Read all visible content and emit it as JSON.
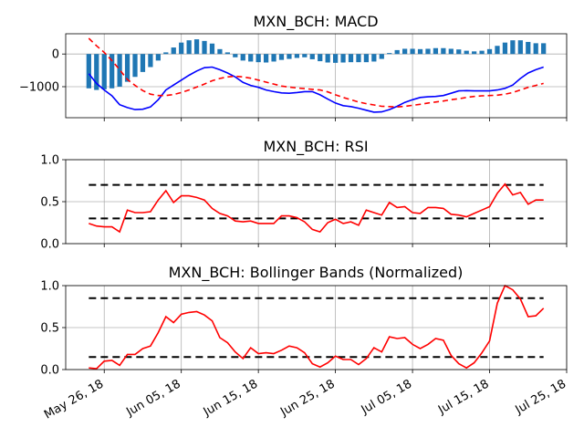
{
  "colors": {
    "bars": "#1f77b4",
    "macd": "#0000ff",
    "signal": "#ff0000",
    "rsi": "#ff0000",
    "bb": "#ff0000",
    "threshold": "#000000",
    "grid": "#b0b0b0"
  },
  "x_axis": {
    "tick_labels": [
      "May 26, 18",
      "Jun 05, 18",
      "Jun 15, 18",
      "Jun 25, 18",
      "Jul 05, 18",
      "Jul 15, 18",
      "Jul 25, 18"
    ],
    "tick_dates": [
      "2018-05-26",
      "2018-06-05",
      "2018-06-15",
      "2018-06-25",
      "2018-07-05",
      "2018-07-15",
      "2018-07-25"
    ],
    "range": [
      "2018-05-21",
      "2018-07-25"
    ]
  },
  "chart_data": [
    {
      "type": "line",
      "title": "MXN_BCH: MACD",
      "xlabel": "",
      "ylabel": "",
      "ylim": [
        -1950,
        620
      ],
      "yticks": [
        0,
        -1000
      ],
      "ytick_labels": [
        "0",
        "−1000"
      ],
      "grid": true,
      "x": [
        "2018-05-24",
        "2018-05-25",
        "2018-05-26",
        "2018-05-27",
        "2018-05-28",
        "2018-05-29",
        "2018-05-30",
        "2018-05-31",
        "2018-06-01",
        "2018-06-02",
        "2018-06-03",
        "2018-06-04",
        "2018-06-05",
        "2018-06-06",
        "2018-06-07",
        "2018-06-08",
        "2018-06-09",
        "2018-06-10",
        "2018-06-11",
        "2018-06-12",
        "2018-06-13",
        "2018-06-14",
        "2018-06-15",
        "2018-06-16",
        "2018-06-17",
        "2018-06-18",
        "2018-06-19",
        "2018-06-20",
        "2018-06-21",
        "2018-06-22",
        "2018-06-23",
        "2018-06-24",
        "2018-06-25",
        "2018-06-26",
        "2018-06-27",
        "2018-06-28",
        "2018-06-29",
        "2018-06-30",
        "2018-07-01",
        "2018-07-02",
        "2018-07-03",
        "2018-07-04",
        "2018-07-05",
        "2018-07-06",
        "2018-07-07",
        "2018-07-08",
        "2018-07-09",
        "2018-07-10",
        "2018-07-11",
        "2018-07-12",
        "2018-07-13",
        "2018-07-14",
        "2018-07-15",
        "2018-07-16",
        "2018-07-17",
        "2018-07-18",
        "2018-07-19",
        "2018-07-20",
        "2018-07-21",
        "2018-07-22"
      ],
      "series": [
        {
          "kind": "bar",
          "values": [
            -1050,
            -1100,
            -1080,
            -1050,
            -1000,
            -850,
            -700,
            -550,
            -400,
            -200,
            50,
            200,
            350,
            420,
            450,
            400,
            320,
            150,
            50,
            -100,
            -200,
            -230,
            -250,
            -260,
            -230,
            -180,
            -150,
            -120,
            -100,
            -160,
            -220,
            -260,
            -270,
            -260,
            -250,
            -250,
            -250,
            -230,
            -150,
            30,
            120,
            160,
            160,
            150,
            160,
            180,
            180,
            160,
            140,
            100,
            80,
            100,
            150,
            250,
            350,
            420,
            420,
            370,
            330,
            330
          ]
        },
        {
          "kind": "line",
          "values": [
            -600,
            -900,
            -1100,
            -1280,
            -1550,
            -1640,
            -1700,
            -1690,
            -1620,
            -1400,
            -1100,
            -950,
            -800,
            -650,
            -520,
            -420,
            -400,
            -480,
            -580,
            -700,
            -870,
            -960,
            -1020,
            -1100,
            -1150,
            -1190,
            -1200,
            -1180,
            -1150,
            -1150,
            -1250,
            -1380,
            -1500,
            -1580,
            -1610,
            -1660,
            -1720,
            -1780,
            -1770,
            -1700,
            -1600,
            -1480,
            -1400,
            -1330,
            -1310,
            -1300,
            -1270,
            -1200,
            -1130,
            -1120,
            -1130,
            -1130,
            -1130,
            -1100,
            -1050,
            -950,
            -750,
            -580,
            -480,
            -400
          ]
        },
        {
          "kind": "line",
          "style": "dashed",
          "values": [
            480,
            250,
            50,
            -200,
            -480,
            -780,
            -960,
            -1120,
            -1230,
            -1270,
            -1270,
            -1240,
            -1180,
            -1100,
            -1010,
            -920,
            -820,
            -750,
            -700,
            -680,
            -700,
            -740,
            -800,
            -860,
            -920,
            -980,
            -1010,
            -1040,
            -1060,
            -1080,
            -1100,
            -1160,
            -1250,
            -1330,
            -1400,
            -1470,
            -1520,
            -1560,
            -1600,
            -1610,
            -1620,
            -1600,
            -1570,
            -1540,
            -1500,
            -1470,
            -1440,
            -1400,
            -1370,
            -1330,
            -1300,
            -1280,
            -1270,
            -1260,
            -1230,
            -1180,
            -1100,
            -1020,
            -960,
            -900
          ]
        }
      ]
    },
    {
      "type": "line",
      "title": "MXN_BCH: RSI",
      "xlabel": "",
      "ylabel": "",
      "ylim": [
        0,
        1
      ],
      "yticks": [
        0,
        0.5,
        1
      ],
      "ytick_labels": [
        "0.0",
        "0.5",
        "1.0"
      ],
      "grid": true,
      "thresholds": [
        0.7,
        0.3
      ],
      "x_start": "2018-05-24",
      "x_end": "2018-07-22",
      "series": [
        {
          "kind": "line",
          "values": [
            0.24,
            0.21,
            0.2,
            0.2,
            0.14,
            0.4,
            0.37,
            0.37,
            0.38,
            0.52,
            0.63,
            0.49,
            0.57,
            0.57,
            0.55,
            0.52,
            0.42,
            0.36,
            0.33,
            0.27,
            0.26,
            0.27,
            0.24,
            0.24,
            0.24,
            0.33,
            0.33,
            0.31,
            0.26,
            0.17,
            0.14,
            0.25,
            0.29,
            0.24,
            0.26,
            0.22,
            0.4,
            0.37,
            0.34,
            0.49,
            0.43,
            0.44,
            0.37,
            0.36,
            0.43,
            0.43,
            0.42,
            0.35,
            0.34,
            0.32,
            0.36,
            0.4,
            0.44,
            0.6,
            0.71,
            0.58,
            0.61,
            0.47,
            0.52,
            0.52
          ]
        }
      ]
    },
    {
      "type": "line",
      "title": "MXN_BCH: Bollinger Bands (Normalized)",
      "xlabel": "",
      "ylabel": "",
      "ylim": [
        0,
        1
      ],
      "yticks": [
        0,
        0.5,
        1
      ],
      "ytick_labels": [
        "0.0",
        "0.5",
        "1.0"
      ],
      "grid": true,
      "thresholds": [
        0.85,
        0.15
      ],
      "x_start": "2018-05-24",
      "x_end": "2018-07-22",
      "series": [
        {
          "kind": "line",
          "values": [
            0.02,
            0.01,
            0.1,
            0.11,
            0.05,
            0.18,
            0.18,
            0.25,
            0.28,
            0.44,
            0.63,
            0.56,
            0.66,
            0.68,
            0.69,
            0.65,
            0.58,
            0.38,
            0.32,
            0.21,
            0.13,
            0.26,
            0.19,
            0.2,
            0.19,
            0.23,
            0.28,
            0.26,
            0.2,
            0.07,
            0.03,
            0.08,
            0.16,
            0.12,
            0.12,
            0.06,
            0.13,
            0.26,
            0.21,
            0.39,
            0.37,
            0.38,
            0.3,
            0.25,
            0.3,
            0.37,
            0.35,
            0.17,
            0.07,
            0.02,
            0.08,
            0.2,
            0.34,
            0.79,
            1.0,
            0.95,
            0.84,
            0.63,
            0.64,
            0.73
          ]
        }
      ]
    }
  ]
}
